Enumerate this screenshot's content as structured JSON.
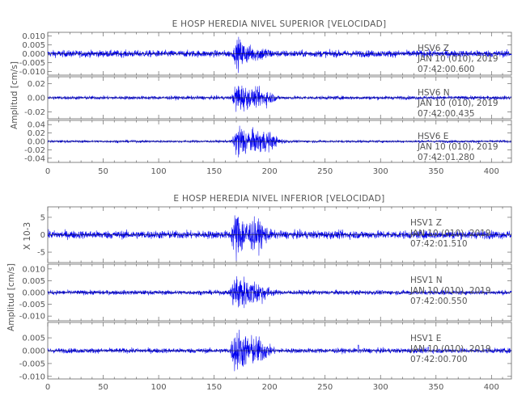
{
  "chart_data": [
    {
      "type": "line",
      "title": "E HOSP HEREDIA NIVEL SUPERIOR [VELOCIDAD]",
      "ylabel": "Amplitud [cm/s]",
      "xlim": [
        0,
        418
      ],
      "xticks": [
        0,
        50,
        100,
        150,
        200,
        250,
        300,
        350,
        400
      ],
      "line_color": "#0000ee",
      "panels": [
        {
          "station": "HSV6",
          "channel": "Z",
          "date": "JAN 10 (010), 2019",
          "time": "07:42:00.600",
          "ylim": [
            -0.012,
            0.012
          ],
          "yticks": [
            0.01,
            0.005,
            0.0,
            -0.005,
            -0.01
          ],
          "ytick_labels": [
            "0.010",
            "0.005",
            "0.000",
            "-0.005",
            "-0.010"
          ],
          "envelope": {
            "onset": 165,
            "peak_t": 172,
            "peak_amp": 0.009,
            "noise_amp": 0.0018,
            "decay": 14,
            "coda_t": 195,
            "coda_amp": 0.002
          }
        },
        {
          "station": "HSV6",
          "channel": "N",
          "date": "JAN 10 (010), 2019",
          "time": "07:42:00.435",
          "ylim": [
            -0.03,
            0.03
          ],
          "yticks": [
            0.02,
            0.0,
            -0.02
          ],
          "ytick_labels": [
            "0.02",
            "0.00",
            "-0.02"
          ],
          "envelope": {
            "onset": 165,
            "peak_t": 171,
            "peak_amp": 0.025,
            "noise_amp": 0.0025,
            "decay": 16,
            "coda_t": 195,
            "coda_amp": 0.007
          }
        },
        {
          "station": "HSV6",
          "channel": "E",
          "date": "JAN 10 (010), 2019",
          "time": "07:42:01.280",
          "ylim": [
            -0.05,
            0.05
          ],
          "yticks": [
            0.04,
            0.02,
            0.0,
            -0.02,
            -0.04
          ],
          "ytick_labels": [
            "0.04",
            "0.02",
            "0.00",
            "-0.02",
            "-0.04"
          ],
          "envelope": {
            "onset": 165,
            "peak_t": 172,
            "peak_amp": 0.045,
            "noise_amp": 0.003,
            "decay": 18,
            "coda_t": 196,
            "coda_amp": 0.015
          }
        }
      ]
    },
    {
      "type": "line",
      "title": "E HOSP HEREDIA NIVEL INFERIOR [VELOCIDAD]",
      "ylabel": "Amplitud [cm/s]",
      "xlim": [
        0,
        418
      ],
      "xticks": [
        0,
        50,
        100,
        150,
        200,
        250,
        300,
        350,
        400
      ],
      "line_color": "#0000ee",
      "panels": [
        {
          "station": "HSV1",
          "channel": "Z",
          "date": "JAN 10 (010), 2019",
          "time": "07:42:01.510",
          "ylim": [
            -0.008,
            0.008
          ],
          "scale_label": "X 10-3",
          "yticks": [
            0.005,
            0.0,
            -0.005
          ],
          "ytick_labels": [
            "5",
            "0",
            "-5"
          ],
          "envelope": {
            "onset": 163,
            "peak_t": 170,
            "peak_amp": 0.0072,
            "noise_amp": 0.0011,
            "decay": 16,
            "coda_t": 190,
            "coda_amp": 0.002
          }
        },
        {
          "station": "HSV1",
          "channel": "N",
          "date": "JAN 10 (010), 2019",
          "time": "07:42:00.550",
          "ylim": [
            -0.012,
            0.012
          ],
          "yticks": [
            0.01,
            0.005,
            0.0,
            -0.005,
            -0.01
          ],
          "ytick_labels": [
            "0.010",
            "0.005",
            "0.000",
            "-0.005",
            "-0.010"
          ],
          "envelope": {
            "onset": 163,
            "peak_t": 170,
            "peak_amp": 0.0095,
            "noise_amp": 0.0009,
            "decay": 16,
            "coda_t": 190,
            "coda_amp": 0.002
          }
        },
        {
          "station": "HSV1",
          "channel": "E",
          "date": "JAN 10 (010), 2019",
          "time": "07:42:00.700",
          "ylim": [
            -0.011,
            0.011
          ],
          "yticks": [
            0.005,
            0.0,
            -0.005,
            -0.01
          ],
          "ytick_labels": [
            "0.005",
            "0.000",
            "-0.005",
            "-0.010"
          ],
          "envelope": {
            "onset": 163,
            "peak_t": 170,
            "peak_amp": 0.0095,
            "noise_amp": 0.0009,
            "decay": 16,
            "coda_t": 190,
            "coda_amp": 0.0025,
            "spikes": [
              {
                "t": 280,
                "amp": 0.0022
              },
              {
                "t": 343,
                "amp": 0.0014
              }
            ]
          }
        }
      ]
    }
  ]
}
